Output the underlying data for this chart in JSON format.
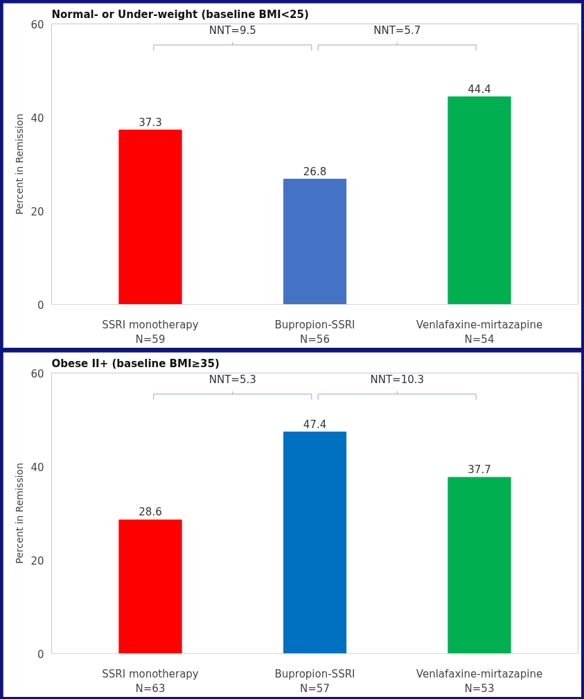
{
  "chart_data": [
    {
      "type": "bar",
      "title": "Normal- or Under-weight (baseline BMI<25)",
      "ylabel": "Percent in Remission",
      "categories": [
        "SSRI monotherapy\nN=59",
        "Bupropion-SSRI\nN=56",
        "Venlafaxine-mirtazapine\nN=54"
      ],
      "values": [
        37.3,
        26.8,
        44.4
      ],
      "colors": [
        "#ff0000",
        "#4472c4",
        "#00b050"
      ],
      "ylim": [
        0,
        60
      ],
      "yticks": [
        0,
        20,
        40,
        60
      ],
      "grid": false,
      "data_labels": true,
      "annotations": [
        "NNT=9.5",
        "NNT=5.7"
      ]
    },
    {
      "type": "bar",
      "title": "Obese II+ (baseline BMI≥35)",
      "ylabel": "Percent in Remission",
      "categories": [
        "SSRI monotherapy\nN=63",
        "Bupropion-SSRI\nN=57",
        "Venlafaxine-mirtazapine\nN=53"
      ],
      "values": [
        28.6,
        47.4,
        37.7
      ],
      "colors": [
        "#ff0000",
        "#0070c0",
        "#00b050"
      ],
      "ylim": [
        0,
        60
      ],
      "yticks": [
        0,
        20,
        40,
        60
      ],
      "grid": false,
      "data_labels": true,
      "annotations": [
        "NNT=5.3",
        "NNT=10.3"
      ]
    }
  ]
}
